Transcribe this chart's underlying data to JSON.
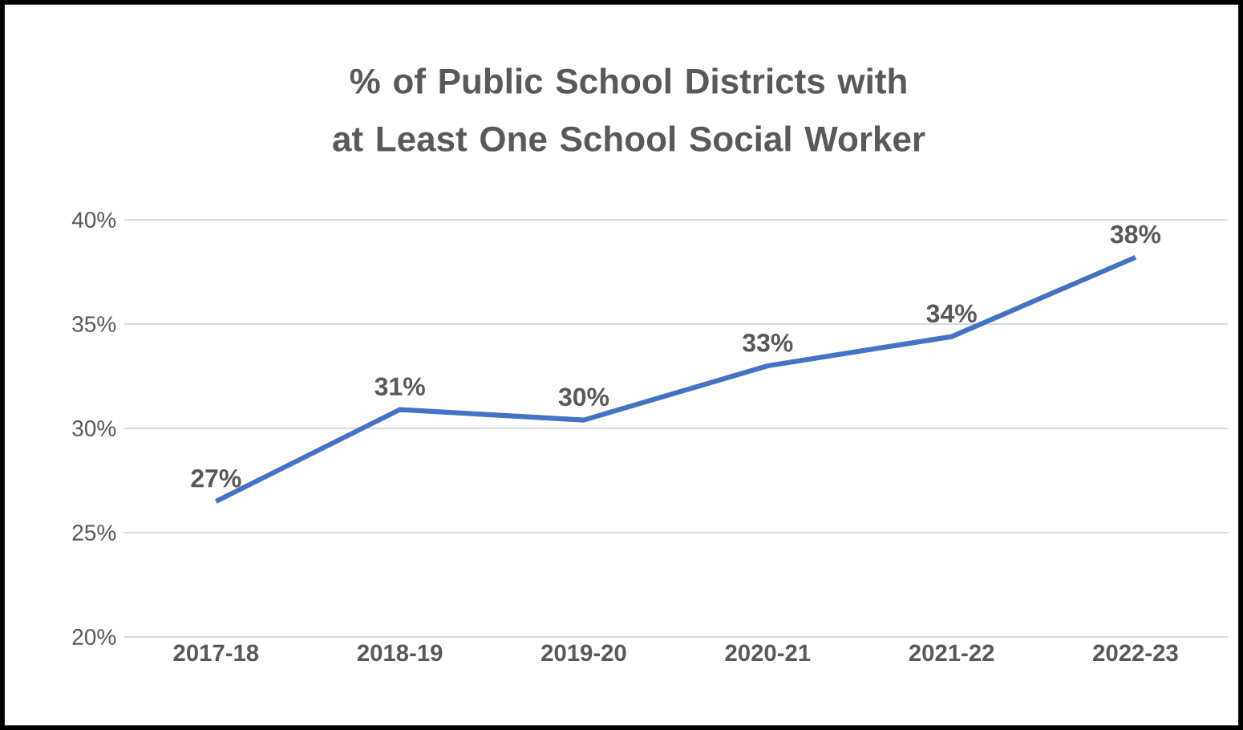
{
  "chart_data": {
    "type": "line",
    "title": "% of Public School Districts with at Least One School Social Worker",
    "categories": [
      "2017-18",
      "2018-19",
      "2019-20",
      "2020-21",
      "2021-22",
      "2022-23"
    ],
    "series": [
      {
        "color": "#4472c4",
        "values": [
          26.5,
          30.9,
          30.4,
          33.0,
          34.4,
          38.2
        ],
        "value_labels": [
          "27%",
          "31%",
          "30%",
          "33%",
          "34%",
          "38%"
        ]
      }
    ],
    "ylim": [
      20,
      40
    ],
    "yticks": [
      {
        "value": 20,
        "label": "20%"
      },
      {
        "value": 25,
        "label": "25%"
      },
      {
        "value": 30,
        "label": "30%"
      },
      {
        "value": 35,
        "label": "35%"
      },
      {
        "value": 40,
        "label": "40%"
      }
    ],
    "grid": "y",
    "marker": "none",
    "line_style": "solid"
  }
}
